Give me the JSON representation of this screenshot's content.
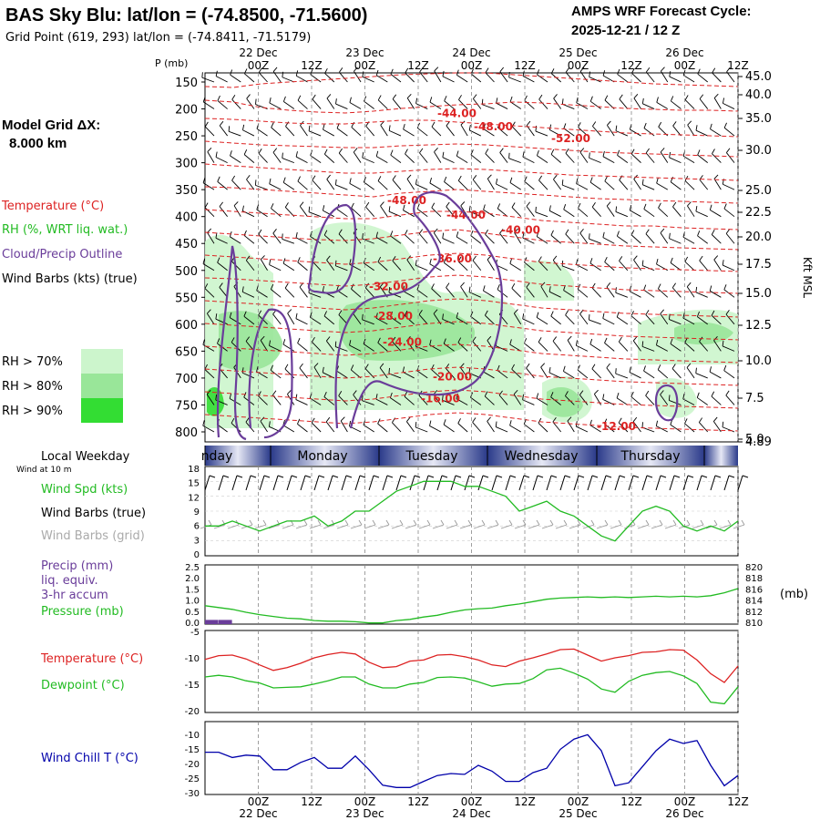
{
  "header": {
    "title": "BAS Sky Blu:  lat/lon = (-74.8500, -71.5600)",
    "grid_point": "Grid Point (619, 293) lat/lon = (-74.8411, -71.5179)",
    "forecast_label": "AMPS WRF Forecast Cycle:",
    "forecast_cycle": "2025-12-21 / 12  Z",
    "model_grid_label": "Model Grid ΔX:",
    "model_grid_value": "8.000 km"
  },
  "time_axis": {
    "hours": [
      "00Z",
      "12Z",
      "00Z",
      "12Z",
      "00Z",
      "12Z",
      "00Z",
      "12Z",
      "00Z",
      "12Z"
    ],
    "dates": [
      "22 Dec",
      "23 Dec",
      "24 Dec",
      "25 Dec",
      "26 Dec"
    ],
    "local_weekday_label": "Local Weekday",
    "weekdays": [
      "nday",
      "Monday",
      "Tuesday",
      "Wednesday",
      "Thursday"
    ]
  },
  "legend": {
    "p_label": "P (mb)",
    "temperature": "Temperature (°C)",
    "rh": "RH (%, WRT liq. wat.)",
    "cloud": "Cloud/Precip Outline",
    "wind_barbs": "Wind Barbs (kts) (true)",
    "rh70": "RH > 70%",
    "rh80": "RH > 80%",
    "rh90": "RH > 90%",
    "kft_label": "Kft MSL",
    "colors": {
      "temperature": "#dd2222",
      "rh": "#22bb22",
      "cloud": "#6a3d9a",
      "rh70": "#ccf5cc",
      "rh80": "#99e699",
      "rh90": "#33dd33"
    }
  },
  "chart_data": [
    {
      "type": "heatmap",
      "name": "cross-section",
      "pressure_ticks": [
        "150",
        "200",
        "250",
        "300",
        "350",
        "400",
        "450",
        "500",
        "550",
        "600",
        "650",
        "700",
        "750",
        "800"
      ],
      "height_ticks": [
        "45.0",
        "40.0",
        "35.0",
        "30.0",
        "25.0",
        "22.5",
        "20.0",
        "17.5",
        "15.0",
        "12.5",
        "10.0",
        "7.5",
        "5.0",
        "4.89"
      ],
      "isotherm_labels": [
        {
          "text": "-44.00",
          "p": 208
        },
        {
          "text": "-48.00",
          "p": 233
        },
        {
          "text": "-52.00",
          "p": 255
        },
        {
          "text": "-48.00",
          "p": 370
        },
        {
          "text": "-44.00",
          "p": 397
        },
        {
          "text": "-40.00",
          "p": 425
        },
        {
          "text": "-36.00",
          "p": 478
        },
        {
          "text": "-32.00",
          "p": 530
        },
        {
          "text": "-28.00",
          "p": 585
        },
        {
          "text": "-24.00",
          "p": 633
        },
        {
          "text": "-20.00",
          "p": 698
        },
        {
          "text": "-16.00",
          "p": 738
        },
        {
          "text": "-12.00",
          "p": 790
        }
      ]
    },
    {
      "type": "line",
      "name": "wind",
      "xlabel": "",
      "ylim": [
        0,
        18
      ],
      "yticks": [
        "18",
        "15",
        "12",
        "9",
        "6",
        "3",
        "0"
      ],
      "label_10m": "Wind at 10 m",
      "label_spd": "Wind Spd (kts)",
      "label_barbs_true": "Wind Barbs (true)",
      "label_barbs_grid": "Wind Barbs (grid)",
      "x": [
        0,
        3,
        6,
        9,
        12,
        15,
        18,
        21,
        24,
        27,
        30,
        33,
        36,
        39,
        42,
        45,
        48,
        51,
        54,
        57,
        60,
        63,
        66,
        69,
        72,
        75,
        78,
        81,
        84,
        87,
        90,
        93,
        96,
        99,
        102,
        105,
        108,
        111,
        114,
        117
      ],
      "values": [
        6,
        6,
        7,
        6,
        5,
        6,
        7,
        7,
        8,
        6,
        7,
        9,
        9,
        11,
        13,
        14,
        15,
        15,
        15,
        14,
        14,
        13,
        12,
        9,
        10,
        11,
        9,
        8,
        6,
        4,
        3,
        6,
        9,
        10,
        9,
        6,
        5,
        6,
        5,
        7
      ]
    },
    {
      "type": "line",
      "name": "precip-pressure",
      "precip_label": "Precip (mm)",
      "precip_sub1": "liq. equiv.",
      "precip_sub2": "3-hr accum",
      "pressure_label": "Pressure (mb)",
      "unit_mb": "(mb)",
      "precip_ylim": [
        0,
        2.5
      ],
      "precip_yticks": [
        "2.5",
        "2.0",
        "1.5",
        "1.0",
        "0.5",
        "0.0"
      ],
      "pressure_ylim": [
        810,
        820
      ],
      "pressure_yticks": [
        "820",
        "818",
        "816",
        "814",
        "812",
        "810"
      ],
      "x": [
        0,
        3,
        6,
        9,
        12,
        15,
        18,
        21,
        24,
        27,
        30,
        33,
        36,
        39,
        42,
        45,
        48,
        51,
        54,
        57,
        60,
        63,
        66,
        69,
        72,
        75,
        78,
        81,
        84,
        87,
        90,
        93,
        96,
        99,
        102,
        105,
        108,
        111,
        114,
        117
      ],
      "pressure": [
        813.1,
        812.8,
        812.5,
        812.0,
        811.6,
        811.3,
        811.0,
        810.9,
        810.6,
        810.5,
        810.5,
        810.4,
        810.2,
        810.2,
        810.6,
        810.8,
        811.2,
        811.5,
        812.0,
        812.4,
        812.6,
        812.7,
        813.1,
        813.4,
        813.8,
        814.2,
        814.4,
        814.5,
        814.6,
        814.5,
        814.6,
        814.5,
        814.6,
        814.7,
        814.6,
        814.7,
        814.6,
        814.8,
        815.3,
        816.0
      ],
      "precip": [
        0.1,
        0.1,
        0,
        0,
        0,
        0,
        0,
        0,
        0,
        0,
        0,
        0,
        0,
        0,
        0,
        0,
        0,
        0,
        0,
        0,
        0,
        0,
        0,
        0,
        0,
        0,
        0,
        0,
        0,
        0,
        0,
        0,
        0,
        0,
        0,
        0,
        0,
        0,
        0,
        0
      ]
    },
    {
      "type": "line",
      "name": "temperature-dewpoint",
      "temp_label": "Temperature (°C)",
      "dew_label": "Dewpoint (°C)",
      "ylim": [
        -20,
        -5
      ],
      "yticks": [
        "-5",
        "-10",
        "-15",
        "-20"
      ],
      "x": [
        0,
        3,
        6,
        9,
        12,
        15,
        18,
        21,
        24,
        27,
        30,
        33,
        36,
        39,
        42,
        45,
        48,
        51,
        54,
        57,
        60,
        63,
        66,
        69,
        72,
        75,
        78,
        81,
        84,
        87,
        90,
        93,
        96,
        99,
        102,
        105,
        108,
        111,
        114,
        117
      ],
      "temperature": [
        -10.3,
        -9.6,
        -9.5,
        -10.2,
        -11.3,
        -12.3,
        -11.8,
        -11.0,
        -10.0,
        -9.4,
        -9.0,
        -9.3,
        -10.8,
        -11.8,
        -11.6,
        -10.6,
        -10.4,
        -9.5,
        -9.4,
        -9.8,
        -10.4,
        -11.3,
        -11.6,
        -10.6,
        -10.0,
        -9.3,
        -8.5,
        -8.4,
        -9.5,
        -10.6,
        -10.0,
        -9.6,
        -9.0,
        -8.9,
        -8.5,
        -8.6,
        -10.4,
        -12.9,
        -14.5,
        -11.5
      ],
      "dewpoint": [
        -13.5,
        -13.2,
        -13.5,
        -14.2,
        -14.6,
        -15.5,
        -15.4,
        -15.3,
        -14.8,
        -14.2,
        -13.5,
        -13.5,
        -14.8,
        -15.5,
        -15.5,
        -14.8,
        -14.5,
        -13.6,
        -13.5,
        -13.7,
        -14.4,
        -15.2,
        -14.8,
        -14.7,
        -13.8,
        -12.2,
        -11.9,
        -12.8,
        -13.9,
        -15.7,
        -16.3,
        -14.3,
        -13.2,
        -12.7,
        -12.5,
        -13.3,
        -14.7,
        -18.1,
        -18.4,
        -15.3
      ]
    },
    {
      "type": "line",
      "name": "wind-chill",
      "label": "Wind Chill T (°C)",
      "ylim": [
        -30,
        -5
      ],
      "yticks": [
        "-10",
        "-15",
        "-20",
        "-25",
        "-30"
      ],
      "x": [
        0,
        3,
        6,
        9,
        12,
        15,
        18,
        21,
        24,
        27,
        30,
        33,
        36,
        39,
        42,
        45,
        48,
        51,
        54,
        57,
        60,
        63,
        66,
        69,
        72,
        75,
        78,
        81,
        84,
        87,
        90,
        93,
        96,
        99,
        102,
        105,
        108,
        111,
        114,
        117
      ],
      "values": [
        -15.5,
        -15.5,
        -17.3,
        -16.5,
        -16.8,
        -21.5,
        -21.5,
        -19.0,
        -17.3,
        -21.0,
        -21.0,
        -16.8,
        -21.5,
        -26.8,
        -27.6,
        -27.6,
        -25.5,
        -23.5,
        -22.8,
        -23.1,
        -20.0,
        -22.0,
        -25.5,
        -25.5,
        -22.5,
        -21.0,
        -14.5,
        -11.0,
        -9.5,
        -15.0,
        -27.0,
        -26.0,
        -20.5,
        -15.0,
        -11.0,
        -12.5,
        -11.5,
        -20.0,
        -27.0,
        -23.5
      ]
    }
  ]
}
